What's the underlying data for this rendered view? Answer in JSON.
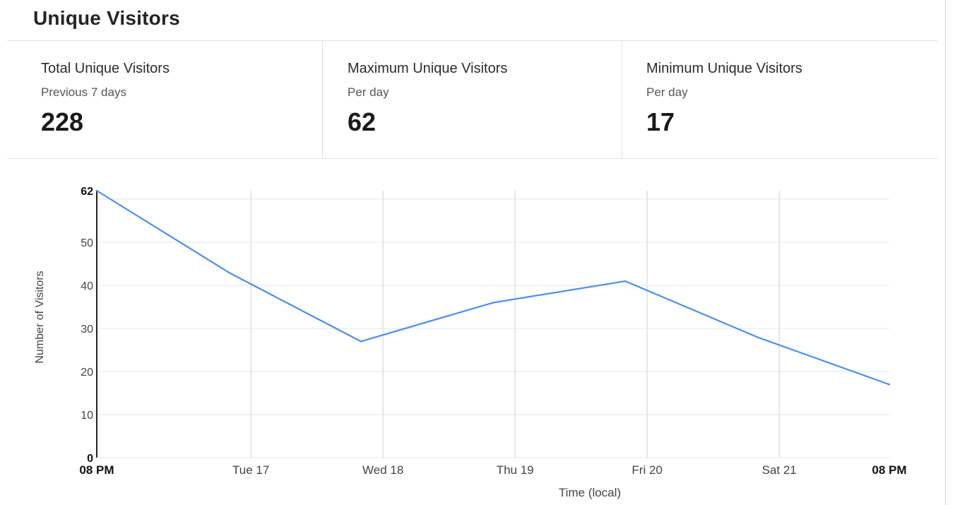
{
  "page": {
    "title": "Unique Visitors"
  },
  "stats": [
    {
      "label": "Total Unique Visitors",
      "sublabel": "Previous 7 days",
      "value": "228"
    },
    {
      "label": "Maximum Unique Visitors",
      "sublabel": "Per day",
      "value": "62"
    },
    {
      "label": "Minimum Unique Visitors",
      "sublabel": "Per day",
      "value": "17"
    }
  ],
  "colors": {
    "line": "#4a8ff0",
    "grid": "#e6e6e6",
    "axis": "#222222"
  },
  "chart_data": {
    "type": "line",
    "xlabel": "Time (local)",
    "ylabel": "Number of Visitors",
    "ylim": [
      0,
      62
    ],
    "yticks": [
      {
        "value": 0,
        "label": "0",
        "bold": true
      },
      {
        "value": 10,
        "label": "10",
        "bold": false
      },
      {
        "value": 20,
        "label": "20",
        "bold": false
      },
      {
        "value": 30,
        "label": "30",
        "bold": false
      },
      {
        "value": 40,
        "label": "40",
        "bold": false
      },
      {
        "value": 50,
        "label": "50",
        "bold": false
      },
      {
        "value": 62,
        "label": "62",
        "bold": true
      }
    ],
    "xticks": [
      {
        "t": 0,
        "label": "08 PM",
        "bold": true
      },
      {
        "t": 28,
        "label": "Tue 17",
        "bold": false
      },
      {
        "t": 52,
        "label": "Wed 18",
        "bold": false
      },
      {
        "t": 76,
        "label": "Thu 19",
        "bold": false
      },
      {
        "t": 100,
        "label": "Fri 20",
        "bold": false
      },
      {
        "t": 124,
        "label": "Sat 21",
        "bold": false
      },
      {
        "t": 144,
        "label": "08 PM",
        "bold": true
      }
    ],
    "series": [
      {
        "x": [
          0,
          24,
          48,
          72,
          96,
          120,
          144
        ],
        "values": [
          62,
          43,
          27,
          36,
          41,
          28,
          17
        ]
      }
    ],
    "grid": true
  }
}
